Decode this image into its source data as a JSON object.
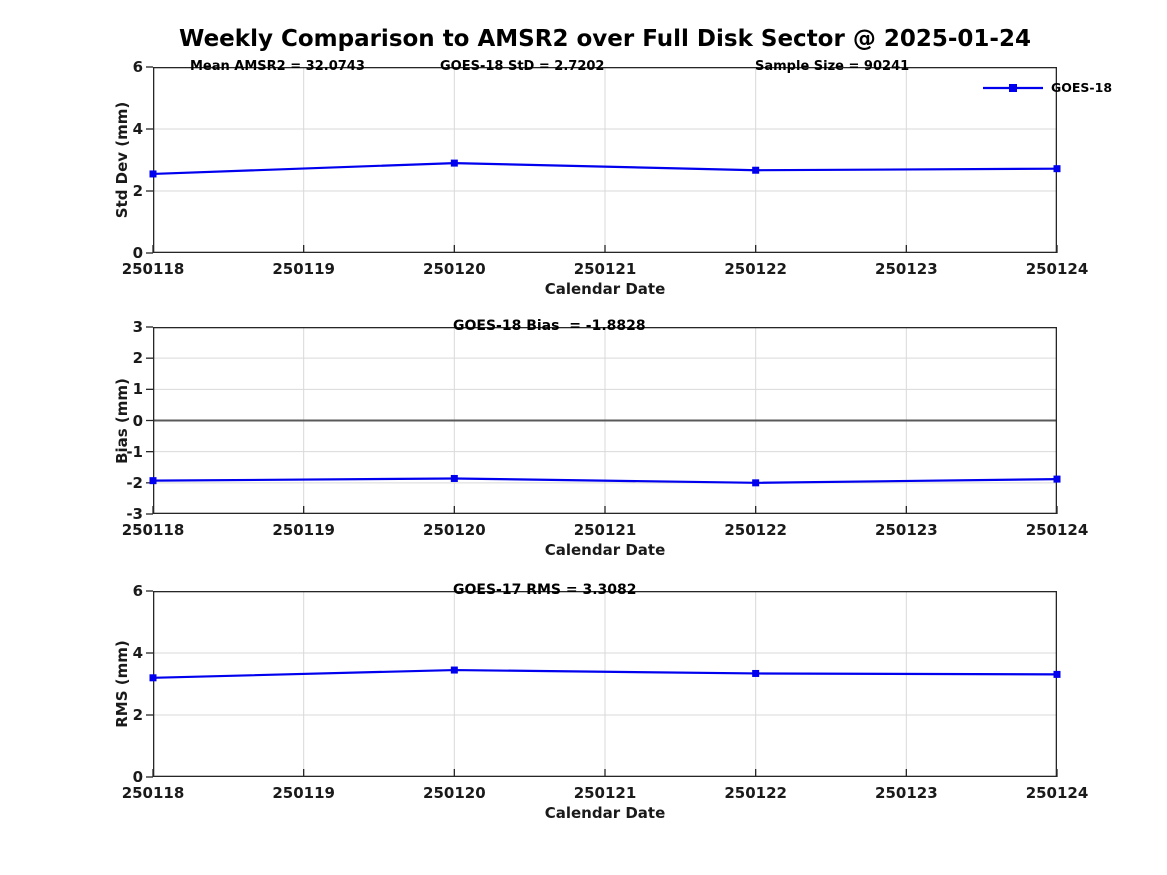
{
  "title": "Weekly Comparison to AMSR2 over Full Disk Sector @ 2025-01-24",
  "colors": {
    "line": "#0000ee",
    "grid": "#d9d9d9",
    "axis": "#262626",
    "zero_line": "#595959",
    "text": "#000000"
  },
  "chart_data": [
    {
      "type": "line",
      "name": "std-dev-panel",
      "ylabel": "Std Dev (mm)",
      "xlabel": "Calendar Date",
      "categories": [
        "250118",
        "250119",
        "250120",
        "250121",
        "250122",
        "250123",
        "250124"
      ],
      "ylim": [
        0,
        6
      ],
      "yticks": [
        0,
        2,
        4,
        6
      ],
      "grid": true,
      "zero_line": false,
      "annotations": [
        {
          "text": "Mean AMSR2 = 32.0743"
        },
        {
          "text": "GOES-18 StD = 2.7202"
        },
        {
          "text": "Sample Size = 90241"
        }
      ],
      "legend": {
        "position": "top-right",
        "entries": [
          "GOES-18"
        ]
      },
      "series": [
        {
          "name": "GOES-18",
          "marker": "square",
          "x": [
            "250118",
            "250120",
            "250122",
            "250124"
          ],
          "values": [
            2.55,
            2.9,
            2.67,
            2.72
          ]
        }
      ]
    },
    {
      "type": "line",
      "name": "bias-panel",
      "ylabel": "Bias (mm)",
      "xlabel": "Calendar Date",
      "categories": [
        "250118",
        "250119",
        "250120",
        "250121",
        "250122",
        "250123",
        "250124"
      ],
      "ylim": [
        -3,
        3
      ],
      "yticks": [
        -3,
        -2,
        -1,
        0,
        1,
        2,
        3
      ],
      "grid": true,
      "zero_line": true,
      "annotations": [
        {
          "text": "GOES-18 Bias  = -1.8828"
        }
      ],
      "legend": null,
      "series": [
        {
          "name": "GOES-18",
          "marker": "square",
          "x": [
            "250118",
            "250120",
            "250122",
            "250124"
          ],
          "values": [
            -1.93,
            -1.86,
            -2.0,
            -1.88
          ]
        }
      ]
    },
    {
      "type": "line",
      "name": "rms-panel",
      "ylabel": "RMS (mm)",
      "xlabel": "Calendar Date",
      "categories": [
        "250118",
        "250119",
        "250120",
        "250121",
        "250122",
        "250123",
        "250124"
      ],
      "ylim": [
        0,
        6
      ],
      "yticks": [
        0,
        2,
        4,
        6
      ],
      "grid": true,
      "zero_line": false,
      "annotations": [
        {
          "text": "GOES-17 RMS = 3.3082"
        }
      ],
      "legend": null,
      "series": [
        {
          "name": "GOES-18",
          "marker": "square",
          "x": [
            "250118",
            "250120",
            "250122",
            "250124"
          ],
          "values": [
            3.2,
            3.45,
            3.34,
            3.31
          ]
        }
      ]
    }
  ]
}
